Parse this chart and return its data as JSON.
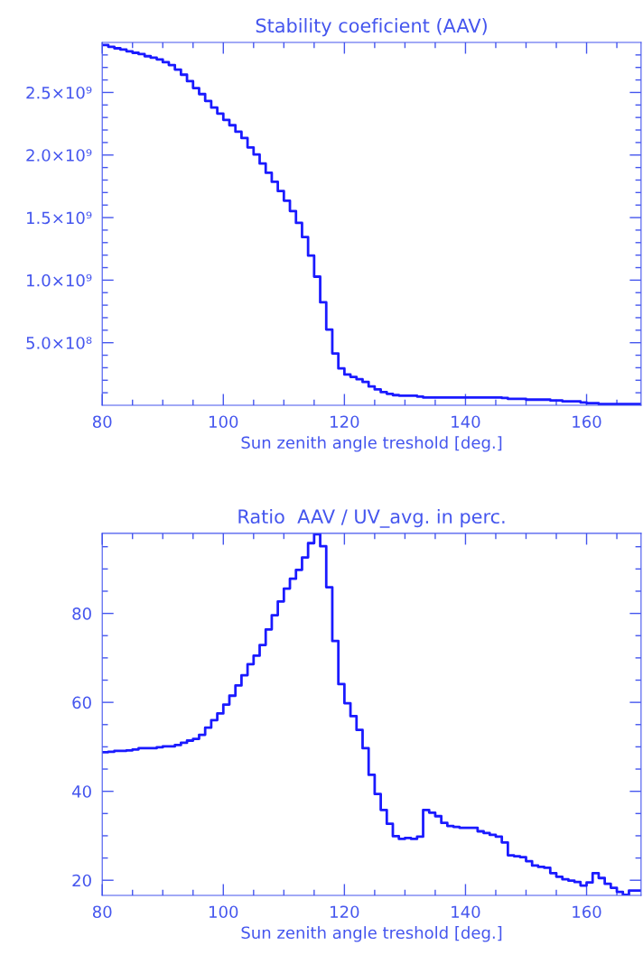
{
  "chart_data": [
    {
      "type": "step",
      "title": "Stability coeficient (AAV)",
      "xlabel": "Sun zenith angle treshold [deg.]",
      "color": "#1a1aff",
      "x": [
        80,
        81,
        82,
        83,
        84,
        85,
        86,
        87,
        88,
        89,
        90,
        91,
        92,
        93,
        94,
        95,
        96,
        97,
        98,
        99,
        100,
        101,
        102,
        103,
        104,
        105,
        106,
        107,
        108,
        109,
        110,
        111,
        112,
        113,
        114,
        115,
        116,
        117,
        118,
        119,
        120,
        121,
        122,
        123,
        124,
        125,
        126,
        127,
        128,
        129,
        132,
        133,
        146,
        147,
        150,
        154,
        156,
        159,
        160,
        162,
        169
      ],
      "values": [
        2880000000.0,
        2865000000.0,
        2853000000.0,
        2843000000.0,
        2829000000.0,
        2817000000.0,
        2807000000.0,
        2790000000.0,
        2778000000.0,
        2764000000.0,
        2742000000.0,
        2719000000.0,
        2683000000.0,
        2642000000.0,
        2590000000.0,
        2535000000.0,
        2487000000.0,
        2432000000.0,
        2379000000.0,
        2331000000.0,
        2281000000.0,
        2238000000.0,
        2186000000.0,
        2136000000.0,
        2061000000.0,
        2004000000.0,
        1932000000.0,
        1858000000.0,
        1786000000.0,
        1712000000.0,
        1635000000.0,
        1552000000.0,
        1458000000.0,
        1344000000.0,
        1196000000.0,
        1028000000.0,
        823000000.0,
        605000000.0,
        414000000.0,
        294000000.0,
        246000000.0,
        227000000.0,
        208000000.0,
        186000000.0,
        150000000.0,
        127000000.0,
        105000000.0,
        91000000.0,
        81000000.0,
        77000000.0,
        70000000.0,
        62000000.0,
        58000000.0,
        51000000.0,
        45000000.0,
        38000000.0,
        31000000.0,
        22000000.0,
        17000000.0,
        9000000.0,
        9000000.0
      ],
      "xlim": [
        80,
        169
      ],
      "ylim": [
        0,
        2900000000.0
      ],
      "xticks": [
        80,
        {
          "value": 85,
          "label": null
        },
        100,
        {
          "value": 90,
          "label": null
        },
        {
          "value": 95,
          "label": null
        },
        {
          "value": 105,
          "label": null
        },
        {
          "value": 110,
          "label": null
        },
        {
          "value": 115,
          "label": null
        },
        120,
        {
          "value": 125,
          "label": null
        },
        {
          "value": 130,
          "label": null
        },
        {
          "value": 135,
          "label": null
        },
        140,
        {
          "value": 145,
          "label": null
        },
        {
          "value": 150,
          "label": null
        },
        {
          "value": 155,
          "label": null
        },
        160,
        {
          "value": 165,
          "label": null
        }
      ],
      "yticks": [
        {
          "value": 100000000.0,
          "label": null
        },
        {
          "value": 200000000.0,
          "label": null
        },
        {
          "value": 300000000.0,
          "label": null
        },
        {
          "value": 400000000.0,
          "label": null
        },
        {
          "value": 500000000.0,
          "label": "5.0×10⁸"
        },
        {
          "value": 600000000.0,
          "label": null
        },
        {
          "value": 700000000.0,
          "label": null
        },
        {
          "value": 800000000.0,
          "label": null
        },
        {
          "value": 900000000.0,
          "label": null
        },
        {
          "value": 1000000000.0,
          "label": "1.0×10⁹"
        },
        {
          "value": 1100000000.0,
          "label": null
        },
        {
          "value": 1200000000.0,
          "label": null
        },
        {
          "value": 1300000000.0,
          "label": null
        },
        {
          "value": 1400000000.0,
          "label": null
        },
        {
          "value": 1500000000.0,
          "label": "1.5×10⁹"
        },
        {
          "value": 1600000000.0,
          "label": null
        },
        {
          "value": 1700000000.0,
          "label": null
        },
        {
          "value": 1800000000.0,
          "label": null
        },
        {
          "value": 1900000000.0,
          "label": null
        },
        {
          "value": 2000000000.0,
          "label": "2.0×10⁹"
        },
        {
          "value": 2100000000.0,
          "label": null
        },
        {
          "value": 2200000000.0,
          "label": null
        },
        {
          "value": 2300000000.0,
          "label": null
        },
        {
          "value": 2400000000.0,
          "label": null
        },
        {
          "value": 2500000000.0,
          "label": "2.5×10⁹"
        },
        {
          "value": 2600000000.0,
          "label": null
        },
        {
          "value": 2700000000.0,
          "label": null
        },
        {
          "value": 2800000000.0,
          "label": null
        }
      ]
    },
    {
      "type": "step",
      "title": "Ratio  AAV / UV_avg. in perc.",
      "xlabel": "Sun zenith angle treshold [deg.]",
      "color": "#1a1aff",
      "x": [
        80,
        81,
        82,
        83,
        84,
        85,
        86,
        87,
        88,
        89,
        90,
        91,
        92,
        93,
        94,
        95,
        96,
        97,
        98,
        99,
        100,
        101,
        102,
        103,
        104,
        105,
        106,
        107,
        108,
        109,
        110,
        111,
        112,
        113,
        114,
        115,
        116,
        117,
        118,
        119,
        120,
        121,
        122,
        123,
        124,
        125,
        126,
        127,
        128,
        129,
        130,
        131,
        132,
        133,
        134,
        135,
        136,
        137,
        138,
        139,
        142,
        143,
        144,
        145,
        146,
        147,
        148,
        149,
        150,
        151,
        152,
        153,
        154,
        155,
        156,
        157,
        158,
        159,
        160,
        161,
        162,
        163,
        164,
        165,
        166,
        167,
        169
      ],
      "values": [
        48.8,
        48.9,
        49.1,
        49.1,
        49.2,
        49.4,
        49.7,
        49.7,
        49.7,
        49.9,
        50.1,
        50.1,
        50.4,
        50.9,
        51.4,
        51.8,
        52.7,
        54.3,
        56.0,
        57.5,
        59.5,
        61.5,
        63.8,
        66.1,
        68.6,
        70.5,
        72.9,
        76.4,
        79.6,
        82.7,
        85.6,
        87.8,
        89.8,
        92.6,
        95.8,
        97.8,
        95.1,
        85.9,
        73.8,
        64.1,
        59.8,
        56.9,
        53.8,
        49.7,
        43.7,
        39.4,
        35.8,
        32.7,
        29.9,
        29.3,
        29.5,
        29.3,
        29.8,
        35.8,
        35.2,
        34.4,
        32.9,
        32.2,
        32.0,
        31.8,
        31.0,
        30.6,
        30.2,
        29.8,
        28.5,
        25.6,
        25.4,
        25.2,
        24.3,
        23.3,
        23.0,
        22.8,
        21.6,
        20.8,
        20.2,
        19.9,
        19.6,
        18.8,
        19.5,
        21.6,
        20.5,
        19.2,
        18.3,
        17.4,
        16.7,
        17.7,
        17.7
      ],
      "xlim": [
        80,
        169
      ],
      "ylim": [
        16.6,
        98
      ],
      "xticks": [
        80,
        {
          "value": 85,
          "label": null
        },
        100,
        {
          "value": 90,
          "label": null
        },
        {
          "value": 95,
          "label": null
        },
        {
          "value": 105,
          "label": null
        },
        {
          "value": 110,
          "label": null
        },
        {
          "value": 115,
          "label": null
        },
        120,
        {
          "value": 125,
          "label": null
        },
        {
          "value": 130,
          "label": null
        },
        {
          "value": 135,
          "label": null
        },
        140,
        {
          "value": 145,
          "label": null
        },
        {
          "value": 150,
          "label": null
        },
        {
          "value": 155,
          "label": null
        },
        160,
        {
          "value": 165,
          "label": null
        }
      ],
      "yticks": [
        20,
        {
          "value": 25,
          "label": null
        },
        {
          "value": 30,
          "label": null
        },
        {
          "value": 35,
          "label": null
        },
        40,
        {
          "value": 45,
          "label": null
        },
        {
          "value": 50,
          "label": null
        },
        {
          "value": 55,
          "label": null
        },
        60,
        {
          "value": 65,
          "label": null
        },
        {
          "value": 70,
          "label": null
        },
        {
          "value": 75,
          "label": null
        },
        80,
        {
          "value": 85,
          "label": null
        },
        {
          "value": 90,
          "label": null
        },
        {
          "value": 95,
          "label": null
        }
      ]
    }
  ]
}
